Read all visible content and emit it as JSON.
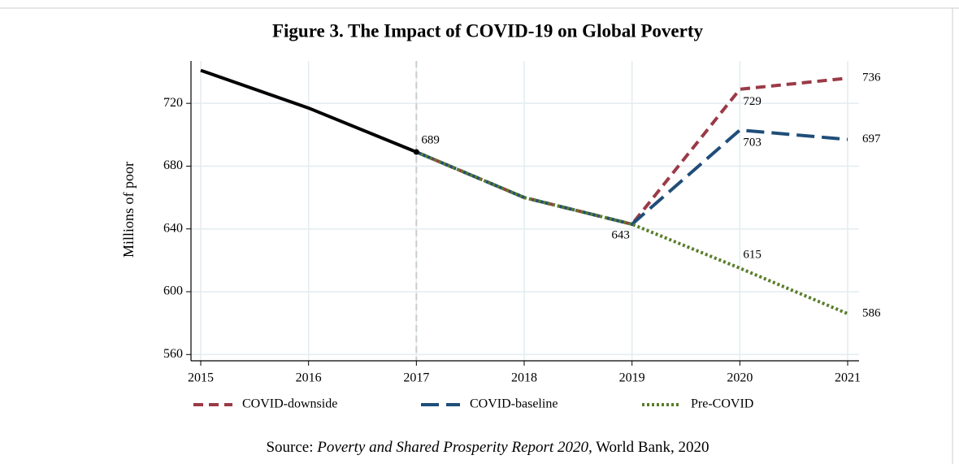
{
  "chart_data": {
    "type": "line",
    "title": "Figure 3.  The Impact of COVID-19 on Global Poverty",
    "ylabel": "Millions of poor",
    "categories": [
      "2015",
      "2016",
      "2017",
      "2018",
      "2019",
      "2020",
      "2021"
    ],
    "series": [
      {
        "color": "#000000",
        "values": [
          741,
          717,
          689,
          null,
          null,
          null,
          null
        ]
      },
      {
        "name": "COVID-downside",
        "color": "#9b3a47",
        "values": [
          null,
          null,
          689,
          660,
          643,
          729,
          736
        ]
      },
      {
        "name": "COVID-baseline",
        "color": "#1f4e79",
        "values": [
          null,
          null,
          689,
          660,
          643,
          703,
          697
        ]
      },
      {
        "name": "Pre-COVID",
        "color": "#5a7d2a",
        "values": [
          null,
          null,
          689,
          660,
          643,
          615,
          586
        ]
      }
    ],
    "ylim": [
      556,
      747
    ],
    "yticks": [
      560,
      600,
      640,
      680,
      720
    ],
    "grid": true,
    "vline": "2017",
    "legend": "bottom",
    "source": {
      "prefix": "Source:",
      "title": "Poverty and Shared Prosperity Report 2020,",
      "suffix": "World Bank, 2020"
    }
  }
}
